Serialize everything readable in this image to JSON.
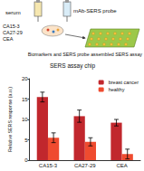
{
  "diagram": {
    "serum": "serum",
    "probe": "mAb-SERS probe",
    "biomarkers": [
      "CA15-3",
      "CA27-29",
      "CEA"
    ],
    "caption": "Biomarkers and SERS probe assembled SERS assay",
    "chip": "SERS assay chip"
  },
  "chart_data": {
    "type": "bar",
    "y_label": "Relative SERS response (a.u.)",
    "categories": [
      "CA15-3",
      "CA27-29",
      "CEA"
    ],
    "series": [
      {
        "name": "breast cancer",
        "color": "#c1272d",
        "values": [
          15.5,
          10.8,
          9.2
        ],
        "errors": [
          1.2,
          1.5,
          0.8
        ]
      },
      {
        "name": "healthy",
        "color": "#ef4b2f",
        "values": [
          5.5,
          4.5,
          1.5
        ],
        "errors": [
          1.2,
          1.0,
          1.2
        ]
      }
    ],
    "ylim": [
      0,
      20
    ],
    "yticks": [
      0,
      5,
      10,
      15,
      20
    ],
    "grid": false,
    "legend": "upper right"
  }
}
